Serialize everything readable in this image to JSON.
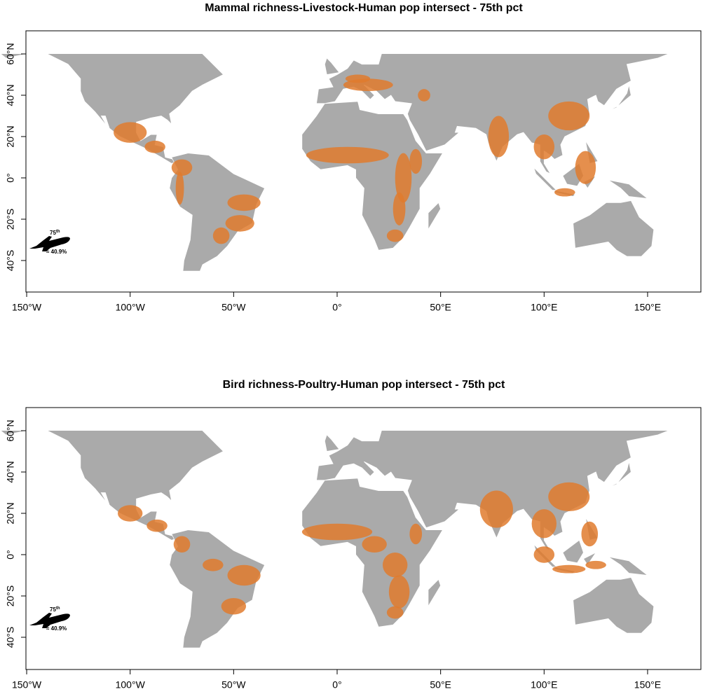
{
  "panels": [
    {
      "title": "Mammal richness-Livestock-Human pop intersect - 75th pct",
      "xticks": [
        {
          "value": -150,
          "label": "150°W"
        },
        {
          "value": -100,
          "label": "100°W"
        },
        {
          "value": -50,
          "label": "50°W"
        },
        {
          "value": 0,
          "label": "0°"
        },
        {
          "value": 50,
          "label": "50°E"
        },
        {
          "value": 100,
          "label": "100°E"
        },
        {
          "value": 150,
          "label": "150°E"
        }
      ],
      "yticks": [
        {
          "value": 60,
          "label": "60°N"
        },
        {
          "value": 40,
          "label": "40°N"
        },
        {
          "value": 20,
          "label": "20°N"
        },
        {
          "value": 0,
          "label": "0°"
        },
        {
          "value": -20,
          "label": "20°S"
        },
        {
          "value": -40,
          "label": "40°S"
        }
      ],
      "legend": {
        "percentile": "75",
        "suffix": "th",
        "share": "≈ 40.9%"
      }
    },
    {
      "title": "Bird richness-Poultry-Human pop intersect - 75th pct",
      "xticks": [
        {
          "value": -150,
          "label": "150°W"
        },
        {
          "value": -100,
          "label": "100°W"
        },
        {
          "value": -50,
          "label": "50°W"
        },
        {
          "value": 0,
          "label": "0°"
        },
        {
          "value": 50,
          "label": "50°E"
        },
        {
          "value": 100,
          "label": "100°E"
        },
        {
          "value": 150,
          "label": "150°E"
        }
      ],
      "yticks": [
        {
          "value": 60,
          "label": "60°N"
        },
        {
          "value": 40,
          "label": "40°N"
        },
        {
          "value": 20,
          "label": "20°N"
        },
        {
          "value": 0,
          "label": "0°"
        },
        {
          "value": -20,
          "label": "20°S"
        },
        {
          "value": -40,
          "label": "40°S"
        }
      ],
      "legend": {
        "percentile": "75",
        "suffix": "th",
        "share": "≈ 40.9%"
      }
    }
  ]
}
